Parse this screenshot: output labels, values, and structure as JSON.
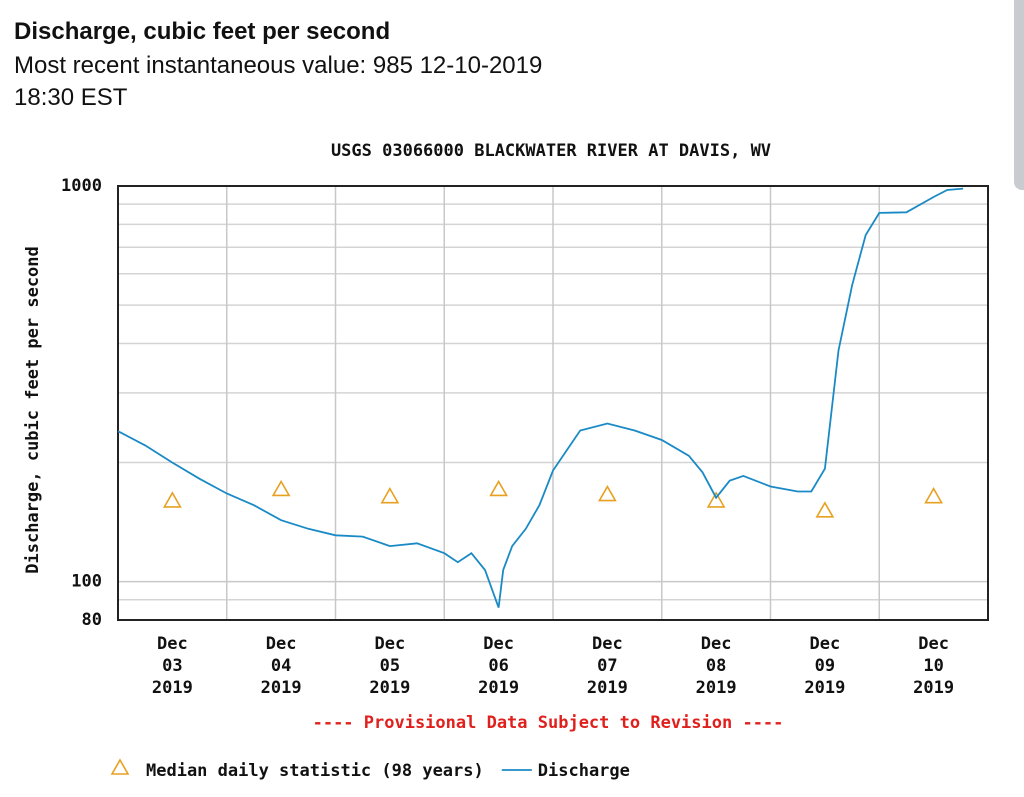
{
  "header": {
    "title": "Discharge, cubic feet per second",
    "lines": [
      "Most recent instantaneous value: 985 12-10-2019",
      "18:30 EST"
    ]
  },
  "chart_data": {
    "type": "line",
    "title": "USGS 03066000 BLACKWATER RIVER AT DAVIS, WV",
    "y_label": "Discharge, cubic feet per second",
    "annotation": "---- Provisional Data Subject to Revision ----",
    "log_y": true,
    "grid": true,
    "minor_grid": true,
    "xlim": [
      "2019-12-03",
      "2019-12-11"
    ],
    "xticks": [
      {
        "value": "2019-12-03",
        "label": "Dec 03 2019"
      },
      {
        "value": "2019-12-04",
        "label": "Dec 04 2019"
      },
      {
        "value": "2019-12-05",
        "label": "Dec 05 2019"
      },
      {
        "value": "2019-12-06",
        "label": "Dec 06 2019"
      },
      {
        "value": "2019-12-07",
        "label": "Dec 07 2019"
      },
      {
        "value": "2019-12-08",
        "label": "Dec 08 2019"
      },
      {
        "value": "2019-12-09",
        "label": "Dec 09 2019"
      },
      {
        "value": "2019-12-10",
        "label": "Dec 10 2019"
      }
    ],
    "ylim": [
      80,
      1000
    ],
    "yticks": [
      80,
      100,
      1000
    ],
    "series": [
      {
        "name": "Median daily statistic (98 years)",
        "color": "#e8a020",
        "marker": "triangle",
        "x": [
          "2019-12-03T12:00",
          "2019-12-04T12:00",
          "2019-12-05T12:00",
          "2019-12-06T12:00",
          "2019-12-07T12:00",
          "2019-12-08T12:00",
          "2019-12-09T12:00",
          "2019-12-10T12:00"
        ],
        "values": [
          160,
          171,
          164,
          171,
          166,
          160,
          151,
          164
        ]
      },
      {
        "name": "Discharge",
        "color": "#1a8ac6",
        "x": [
          "2019-12-03T00:00",
          "2019-12-03T06:00",
          "2019-12-03T12:00",
          "2019-12-03T18:00",
          "2019-12-04T00:00",
          "2019-12-04T06:00",
          "2019-12-04T12:00",
          "2019-12-04T18:00",
          "2019-12-05T00:00",
          "2019-12-05T06:00",
          "2019-12-05T12:00",
          "2019-12-05T18:00",
          "2019-12-06T00:00",
          "2019-12-06T03:00",
          "2019-12-06T06:00",
          "2019-12-06T09:00",
          "2019-12-06T12:00",
          "2019-12-06T13:00",
          "2019-12-06T15:00",
          "2019-12-06T18:00",
          "2019-12-06T21:00",
          "2019-12-07T00:00",
          "2019-12-07T06:00",
          "2019-12-07T12:00",
          "2019-12-07T18:00",
          "2019-12-08T00:00",
          "2019-12-08T06:00",
          "2019-12-08T09:00",
          "2019-12-08T12:00",
          "2019-12-08T15:00",
          "2019-12-08T18:00",
          "2019-12-09T00:00",
          "2019-12-09T06:00",
          "2019-12-09T09:00",
          "2019-12-09T12:00",
          "2019-12-09T15:00",
          "2019-12-09T18:00",
          "2019-12-09T21:00",
          "2019-12-10T00:00",
          "2019-12-10T06:00",
          "2019-12-10T12:00",
          "2019-12-10T15:00",
          "2019-12-10T18:30"
        ],
        "values": [
          240,
          221,
          200,
          182,
          167,
          156,
          143,
          136,
          131,
          130,
          123,
          125,
          118,
          112,
          118,
          107,
          86,
          107,
          123,
          136,
          156,
          191,
          241,
          251,
          241,
          228,
          208,
          189,
          163,
          180,
          185,
          174,
          169,
          169,
          193,
          384,
          561,
          752,
          855,
          858,
          938,
          977,
          985
        ]
      }
    ]
  }
}
